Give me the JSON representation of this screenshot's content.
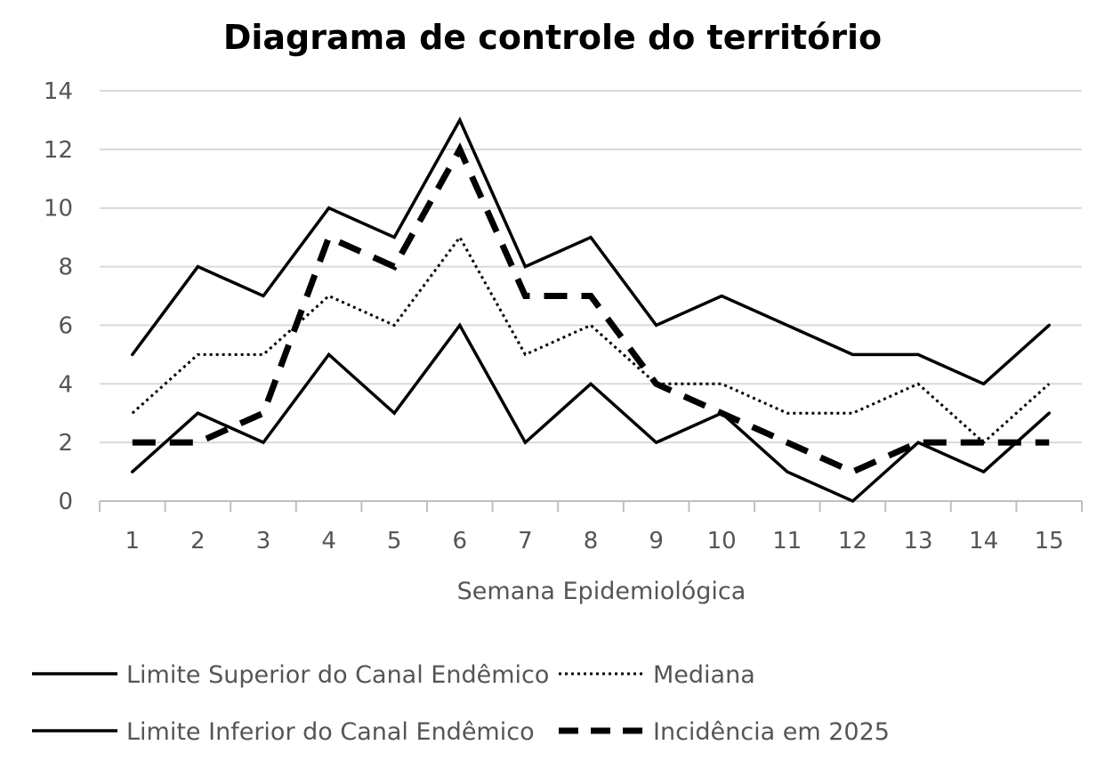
{
  "chart_data": {
    "type": "line",
    "title": "Diagrama de controle do território",
    "xlabel": "Semana Epidemiológica",
    "ylabel": "",
    "x": [
      1,
      2,
      3,
      4,
      5,
      6,
      7,
      8,
      9,
      10,
      11,
      12,
      13,
      14,
      15
    ],
    "ylim": [
      0,
      14
    ],
    "yticks": [
      0,
      2,
      4,
      6,
      8,
      10,
      12,
      14
    ],
    "grid": "horizontal",
    "legend_position": "bottom",
    "series": [
      {
        "name": "Limite Superior do Canal Endêmico",
        "style": "solid",
        "color": "#000000",
        "values": [
          5,
          8,
          7,
          10,
          9,
          13,
          8,
          9,
          6,
          7,
          6,
          5,
          5,
          4,
          6
        ]
      },
      {
        "name": "Mediana",
        "style": "dotted",
        "color": "#000000",
        "values": [
          3,
          5,
          5,
          7,
          6,
          9,
          5,
          6,
          4,
          4,
          3,
          3,
          4,
          2,
          4
        ]
      },
      {
        "name": "Limite Inferior do Canal Endêmico",
        "style": "solid",
        "color": "#000000",
        "values": [
          1,
          3,
          2,
          5,
          3,
          6,
          2,
          4,
          2,
          3,
          1,
          0,
          2,
          1,
          3
        ]
      },
      {
        "name": "Incidência em 2025",
        "style": "dashed",
        "color": "#000000",
        "values": [
          2,
          2,
          3,
          9,
          8,
          12,
          7,
          7,
          4,
          3,
          2,
          1,
          2,
          2,
          2
        ]
      }
    ]
  },
  "colors": {
    "gridline": "#d9d9d9",
    "axis": "#bfbfbf",
    "text": "#555555"
  }
}
